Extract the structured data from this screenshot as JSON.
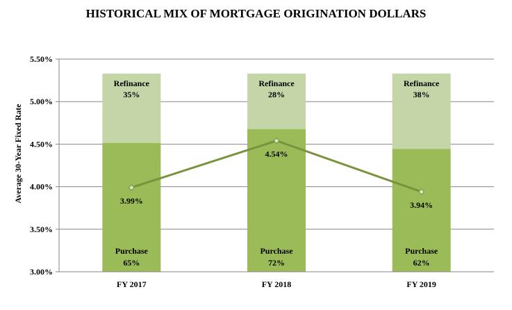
{
  "chart_data": {
    "type": "bar",
    "title": "HISTORICAL MIX OF MORTGAGE ORIGINATION DOLLARS",
    "xlabel": "",
    "ylabel": "Average 30-Year Fixed Rate",
    "ylim": [
      3.0,
      5.5
    ],
    "yticks": [
      "3.00%",
      "3.50%",
      "4.00%",
      "4.50%",
      "5.00%",
      "5.50%"
    ],
    "categories": [
      "FY 2017",
      "FY 2018",
      "FY 2019"
    ],
    "stack_total": 5.33,
    "grid": true,
    "series": [
      {
        "name": "Purchase",
        "kind": "stacked-bar",
        "color": "#9bbb59",
        "share_labels": [
          "65%",
          "72%",
          "62%"
        ],
        "shares": [
          65,
          72,
          62
        ]
      },
      {
        "name": "Refinance",
        "kind": "stacked-bar",
        "color": "#c4d6a8",
        "share_labels": [
          "35%",
          "28%",
          "38%"
        ],
        "shares": [
          35,
          28,
          38
        ]
      },
      {
        "name": "",
        "kind": "line",
        "color": "#77933c",
        "values": [
          3.99,
          4.54,
          3.94
        ],
        "labels": [
          "3.99%",
          "4.54%",
          "3.94%"
        ]
      }
    ]
  }
}
